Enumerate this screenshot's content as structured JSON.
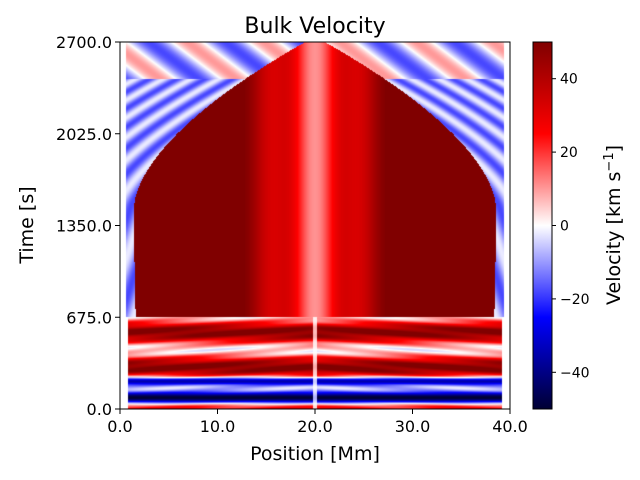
{
  "chart_data": {
    "type": "heatmap",
    "title": "Bulk Velocity",
    "xlabel": "Position [Mm]",
    "ylabel": "Time [s]",
    "xlim": [
      0.0,
      40.0
    ],
    "ylim": [
      0.0,
      2700.0
    ],
    "x_ticks": [
      0.0,
      10.0,
      20.0,
      30.0,
      40.0
    ],
    "x_tick_labels": [
      "0.0",
      "10.0",
      "20.0",
      "30.0",
      "40.0"
    ],
    "y_ticks": [
      0.0,
      675.0,
      1350.0,
      2025.0,
      2700.0
    ],
    "y_tick_labels": [
      "0.0",
      "675.0",
      "1350.0",
      "2025.0",
      "2700.0"
    ],
    "colorbar": {
      "label": "Velocity [km s⁻¹]",
      "label_main": "Velocity [km s",
      "label_exp": "−1",
      "label_close": "]",
      "vmin": -50,
      "vmax": 50,
      "colormap": "seismic",
      "ticks": [
        -40,
        -20,
        0,
        20,
        40
      ],
      "tick_labels": [
        "−40",
        "−20",
        "0",
        "20",
        "40"
      ]
    },
    "field_description": {
      "symmetry_center_Mm": 20.0,
      "saturated_region_time_range": [
        675.0,
        2700.0
      ],
      "oscillation_time_range": [
        0.0,
        675.0
      ],
      "peak_velocity_kms": 50,
      "min_velocity_kms": -50
    },
    "colors": {
      "max": "#800000",
      "zero": "#ffffff",
      "min": "#000033"
    }
  }
}
